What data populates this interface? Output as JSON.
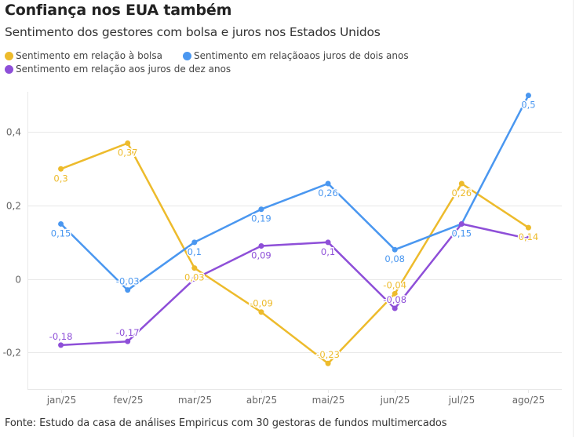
{
  "header": {
    "title": "Confiança nos EUA também",
    "subtitle": "Sentimento dos gestores com bolsa e juros nos Estados Unidos"
  },
  "footer": {
    "source": "Fonte: Estudo da casa de análises Empiricus com 30 gestoras de fundos multimercados"
  },
  "chart_data": {
    "type": "line",
    "title": "Confiança nos EUA também",
    "subtitle": "Sentimento dos gestores com bolsa e juros nos Estados Unidos",
    "xlabel": "",
    "ylabel": "",
    "categories": [
      "jan/25",
      "fev/25",
      "mar/25",
      "abr/25",
      "mai/25",
      "jun/25",
      "jul/25",
      "ago/25"
    ],
    "ylim": [
      -0.3,
      0.51
    ],
    "yticks": [
      -0.2,
      0,
      0.2,
      0.4
    ],
    "ytick_labels": [
      "-0,2",
      "0",
      "0,2",
      "0,4"
    ],
    "grid": true,
    "legend_position": "top-left",
    "series": [
      {
        "name": "Sentimento em relação à bolsa",
        "color": "#EDBB2C",
        "values": [
          0.3,
          0.37,
          0.03,
          -0.09,
          -0.23,
          -0.04,
          0.26,
          0.14
        ],
        "labels": [
          "0,3",
          "0,37",
          "0,03",
          "-0,09",
          "-0,23",
          "-0,04",
          "0,26",
          "0,14"
        ],
        "label_pos": [
          "below",
          "below",
          "below",
          "above",
          "above",
          "above",
          "below",
          "below"
        ]
      },
      {
        "name": "Sentimento em relaçãoaos juros de dois anos",
        "color": "#4A97F0",
        "values": [
          0.15,
          -0.03,
          0.1,
          0.19,
          0.26,
          0.08,
          0.15,
          0.5
        ],
        "labels": [
          "0,15",
          "-0,03",
          "0,1",
          "0,19",
          "0,26",
          "0,08",
          "0,15",
          "0,5"
        ],
        "label_pos": [
          "below",
          "above",
          "below",
          "below",
          "below",
          "below",
          "below",
          "below"
        ]
      },
      {
        "name": "Sentimento em relação aos juros de dez anos",
        "color": "#8E4FD8",
        "values": [
          -0.18,
          -0.17,
          0.0,
          0.09,
          0.1,
          -0.08,
          0.15,
          0.11
        ],
        "labels": [
          "-0,18",
          "-0,17",
          "",
          "0,09",
          "0,1",
          "-0,08",
          "",
          ""
        ],
        "label_pos": [
          "above",
          "above",
          "none",
          "below",
          "below",
          "above",
          "none",
          "none"
        ]
      }
    ]
  }
}
